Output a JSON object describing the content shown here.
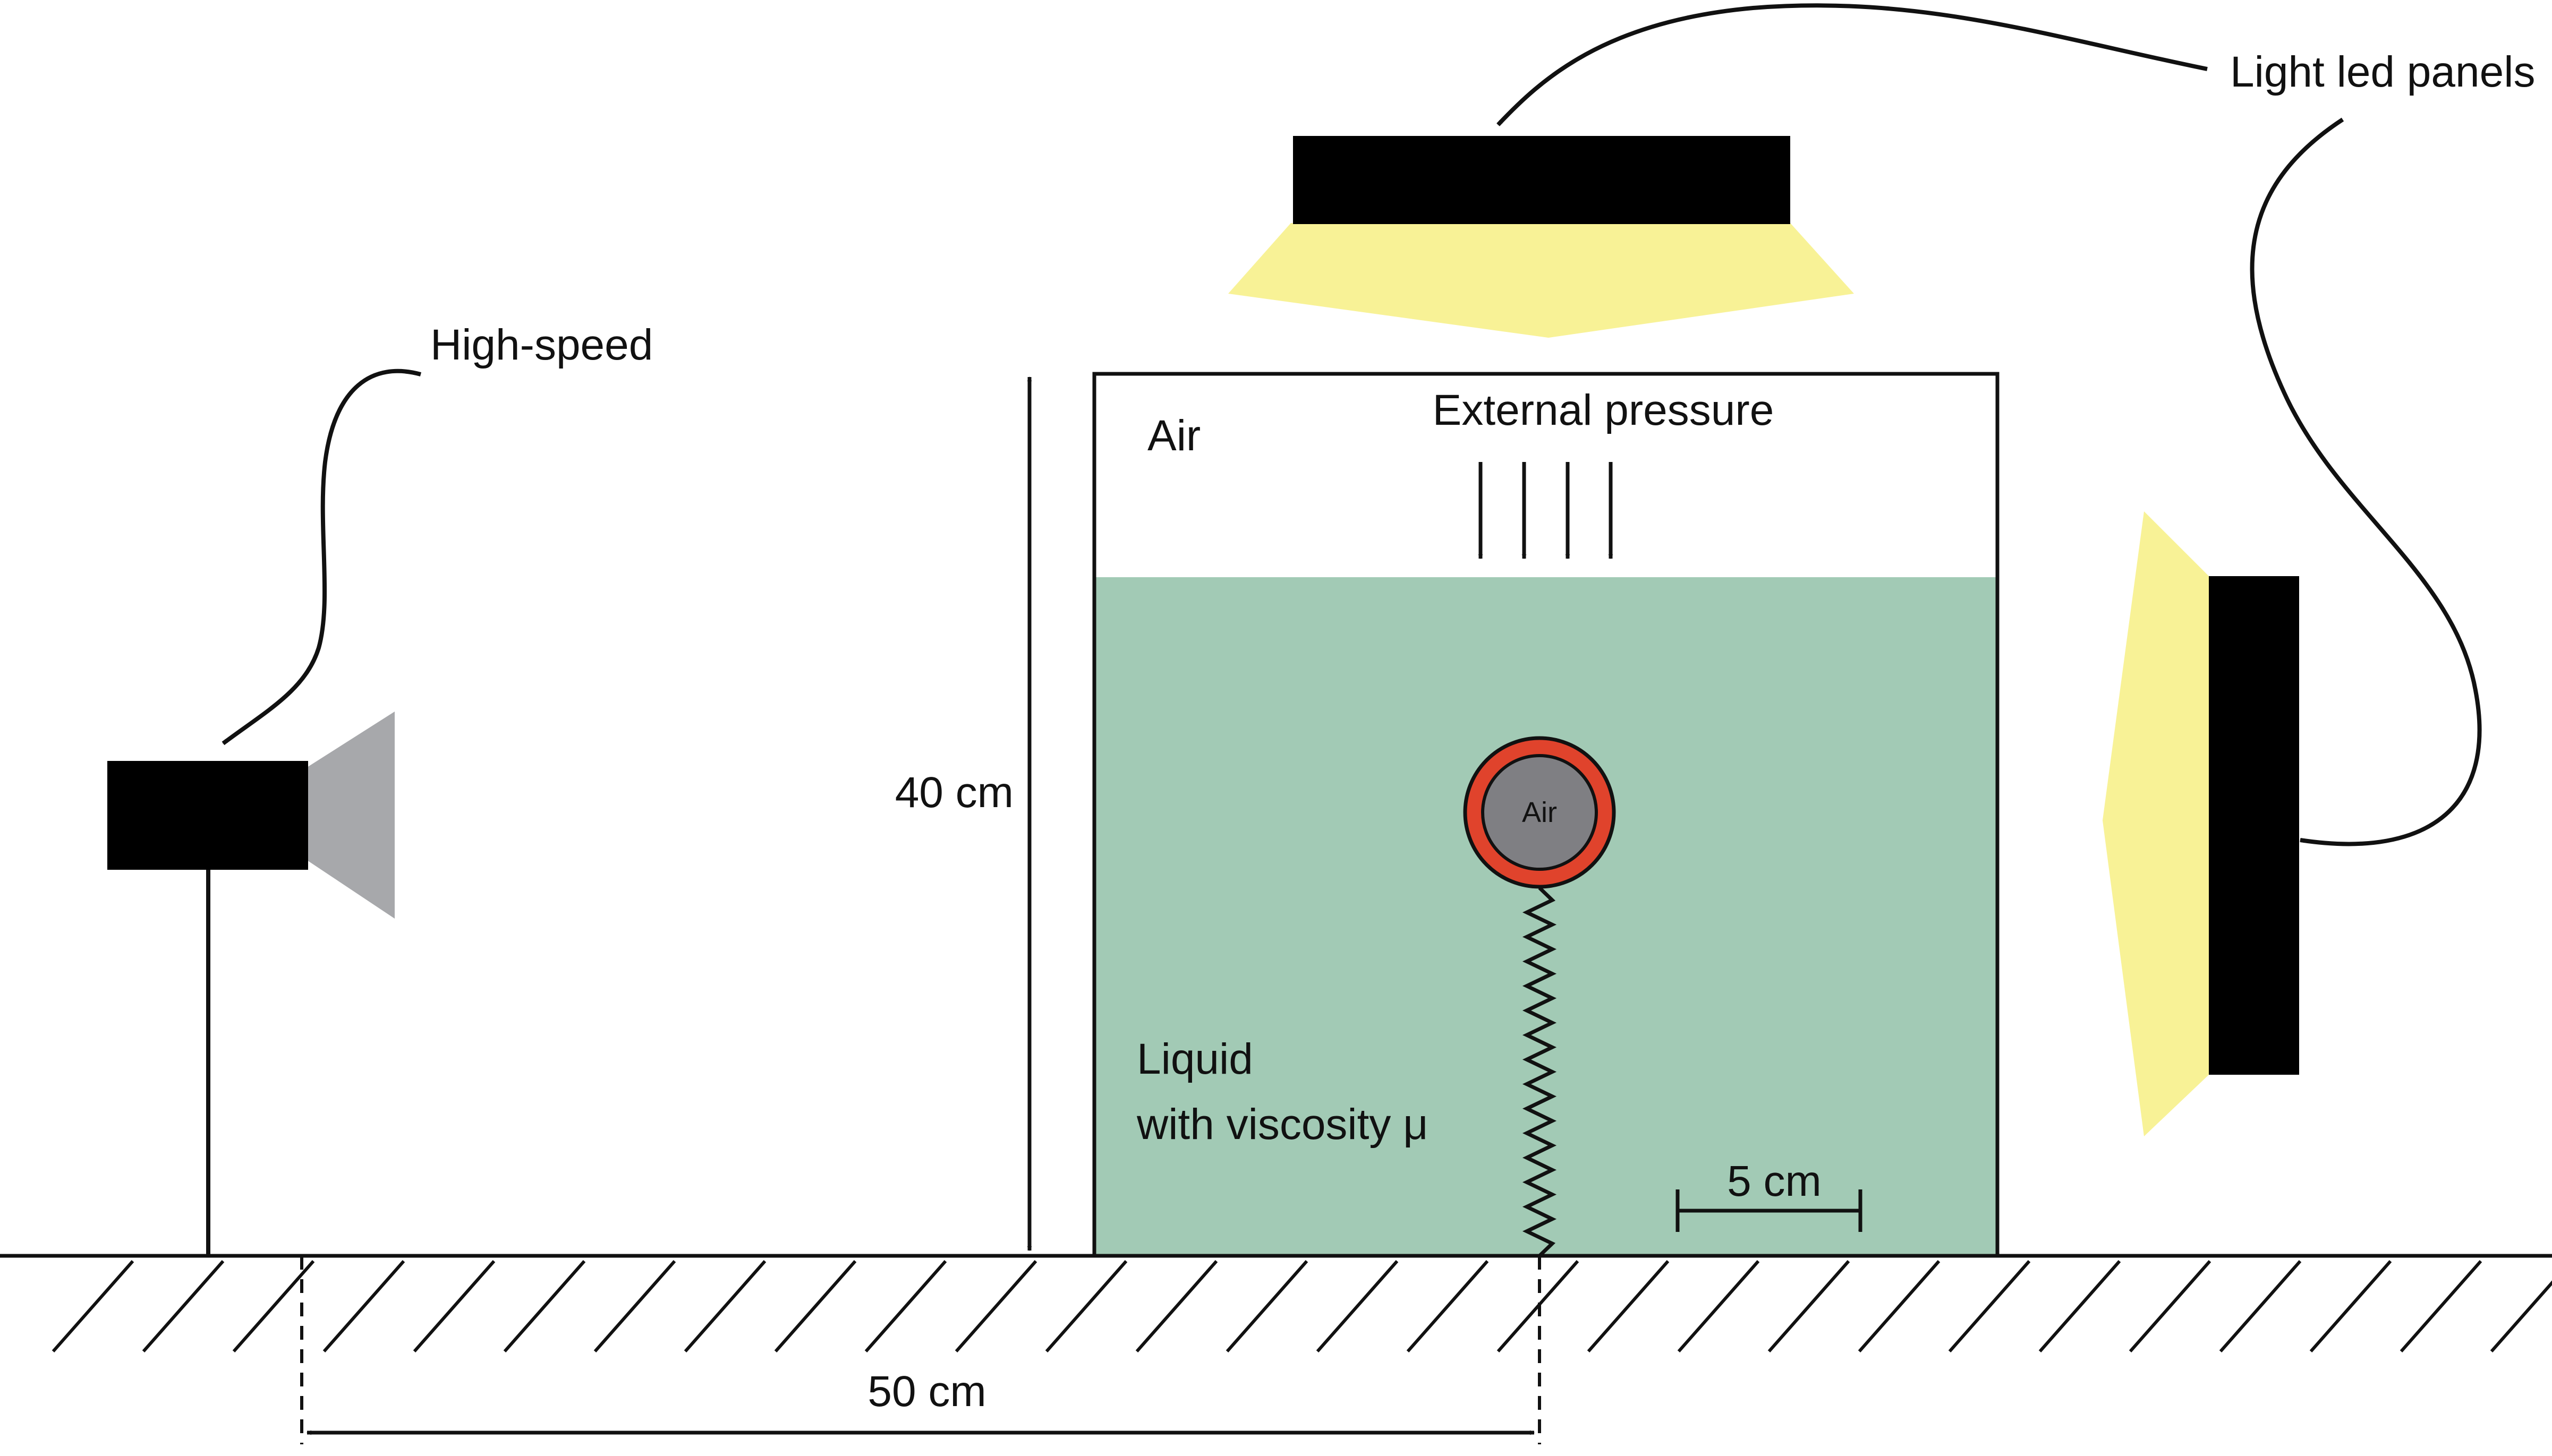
{
  "labels": {
    "camera": "High-speed",
    "lights": "Light led panels",
    "air_top": "Air",
    "external_pressure": "External pressure",
    "height_dim": "40 cm",
    "bubble": "Air",
    "liquid_line1": "Liquid",
    "liquid_line2": "with viscosity μ",
    "scale_bar": "5 cm",
    "distance_dim": "50 cm"
  },
  "colors": {
    "liquid": "#a2cab5",
    "led_glow": "#f8f296",
    "camera_body": "#000000",
    "camera_lens": "#a7a8ab",
    "bubble_ring": "#e0432c",
    "bubble_core": "#7f7f83",
    "outline": "#111111"
  },
  "icons": {
    "camera": "camera-icon",
    "top_panel": "led-panel-icon",
    "side_panel": "led-panel-icon",
    "bubble": "bubble-icon",
    "spring": "spring-icon"
  }
}
